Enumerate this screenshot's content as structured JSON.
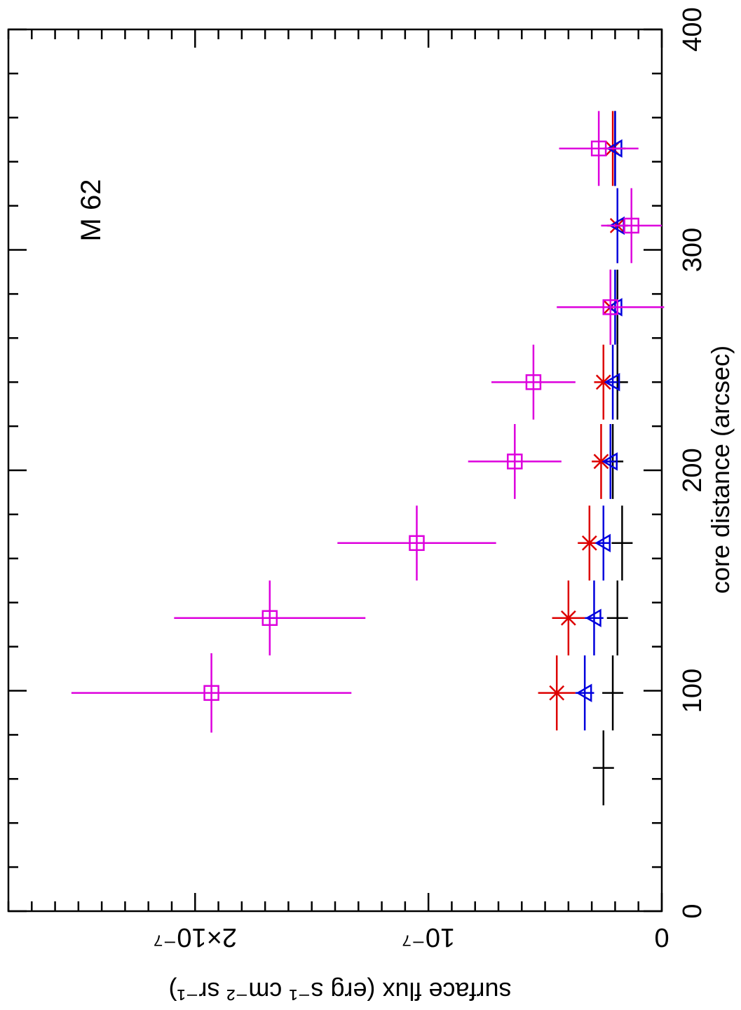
{
  "chart_data": {
    "type": "scatter",
    "title": "M 62",
    "xlabel": "core distance (arcsec)",
    "ylabel": "surface flux (erg s⁻¹ cm⁻² sr⁻¹)",
    "xlim": [
      0,
      400
    ],
    "ylim": [
      0,
      2.8e-07
    ],
    "x_ticks": [
      {
        "value": 0,
        "label": "0"
      },
      {
        "value": 100,
        "label": "100"
      },
      {
        "value": 200,
        "label": "200"
      },
      {
        "value": 300,
        "label": "300"
      },
      {
        "value": 400,
        "label": "400"
      }
    ],
    "y_ticks": [
      {
        "value": 0,
        "label": "0"
      },
      {
        "value": 1e-07,
        "label": "10⁻⁷"
      },
      {
        "value": 2e-07,
        "label": "2×10⁻⁷"
      }
    ],
    "series": [
      {
        "name": "black-plus",
        "marker": "plus",
        "color": "#000000",
        "points": [
          {
            "x": 65,
            "y": 2.5e-08,
            "xerr": 17,
            "yerr": 0
          },
          {
            "x": 99,
            "y": 2.1e-08,
            "xerr": 17,
            "yerr": 0
          },
          {
            "x": 133,
            "y": 1.9e-08,
            "xerr": 17,
            "yerr": 0
          },
          {
            "x": 167,
            "y": 1.7e-08,
            "xerr": 17,
            "yerr": 0
          },
          {
            "x": 204,
            "y": 2.1e-08,
            "xerr": 17,
            "yerr": 0
          },
          {
            "x": 240,
            "y": 1.9e-08,
            "xerr": 17,
            "yerr": 0
          },
          {
            "x": 274,
            "y": 1.9e-08,
            "xerr": 17,
            "yerr": 0
          },
          {
            "x": 311,
            "y": 1.9e-08,
            "xerr": 17,
            "yerr": 0
          },
          {
            "x": 346,
            "y": 2e-08,
            "xerr": 17,
            "yerr": 0
          }
        ]
      },
      {
        "name": "red-asterisk",
        "marker": "asterisk",
        "color": "#dd0000",
        "points": [
          {
            "x": 99,
            "y": 4.5e-08,
            "xerr": 17,
            "yerr": 8e-09
          },
          {
            "x": 133,
            "y": 4e-08,
            "xerr": 17,
            "yerr": 7e-09
          },
          {
            "x": 167,
            "y": 3.1e-08,
            "xerr": 17,
            "yerr": 5e-09
          },
          {
            "x": 204,
            "y": 2.6e-08,
            "xerr": 17,
            "yerr": 4e-09
          },
          {
            "x": 240,
            "y": 2.5e-08,
            "xerr": 17,
            "yerr": 4e-09
          },
          {
            "x": 274,
            "y": 2.2e-08,
            "xerr": 17,
            "yerr": 4e-09
          },
          {
            "x": 311,
            "y": 1.9e-08,
            "xerr": 17,
            "yerr": 4e-09
          },
          {
            "x": 346,
            "y": 2.1e-08,
            "xerr": 17,
            "yerr": 4e-09
          }
        ]
      },
      {
        "name": "blue-triangle",
        "marker": "triangle",
        "color": "#0000dd",
        "points": [
          {
            "x": 99,
            "y": 3.3e-08,
            "xerr": 17,
            "yerr": 4e-09
          },
          {
            "x": 133,
            "y": 2.9e-08,
            "xerr": 17,
            "yerr": 4e-09
          },
          {
            "x": 167,
            "y": 2.5e-08,
            "xerr": 17,
            "yerr": 3e-09
          },
          {
            "x": 204,
            "y": 2.2e-08,
            "xerr": 17,
            "yerr": 2e-09
          },
          {
            "x": 240,
            "y": 2.1e-08,
            "xerr": 17,
            "yerr": 2e-09
          },
          {
            "x": 274,
            "y": 2e-08,
            "xerr": 17,
            "yerr": 2e-09
          },
          {
            "x": 311,
            "y": 1.9e-08,
            "xerr": 17,
            "yerr": 2e-09
          },
          {
            "x": 346,
            "y": 2e-08,
            "xerr": 17,
            "yerr": 2e-09
          }
        ]
      },
      {
        "name": "magenta-square",
        "marker": "square",
        "color": "#dd00dd",
        "points": [
          {
            "x": 99,
            "y": 1.93e-07,
            "xerr": 18,
            "yerr": 6e-08
          },
          {
            "x": 133,
            "y": 1.68e-07,
            "xerr": 17,
            "yerr": 4.1e-08
          },
          {
            "x": 167,
            "y": 1.05e-07,
            "xerr": 17,
            "yerr": 3.4e-08
          },
          {
            "x": 204,
            "y": 6.3e-08,
            "xerr": 17,
            "yerr": 2e-08
          },
          {
            "x": 240,
            "y": 5.5e-08,
            "xerr": 17,
            "yerr": 1.8e-08
          },
          {
            "x": 274,
            "y": 2.2e-08,
            "xerr": 17,
            "yerr": 2.3e-08
          },
          {
            "x": 311,
            "y": 1.3e-08,
            "xerr": 17,
            "yerr": 1.3e-08
          },
          {
            "x": 346,
            "y": 2.7e-08,
            "xerr": 17,
            "yerr": 1.7e-08
          }
        ]
      }
    ]
  }
}
